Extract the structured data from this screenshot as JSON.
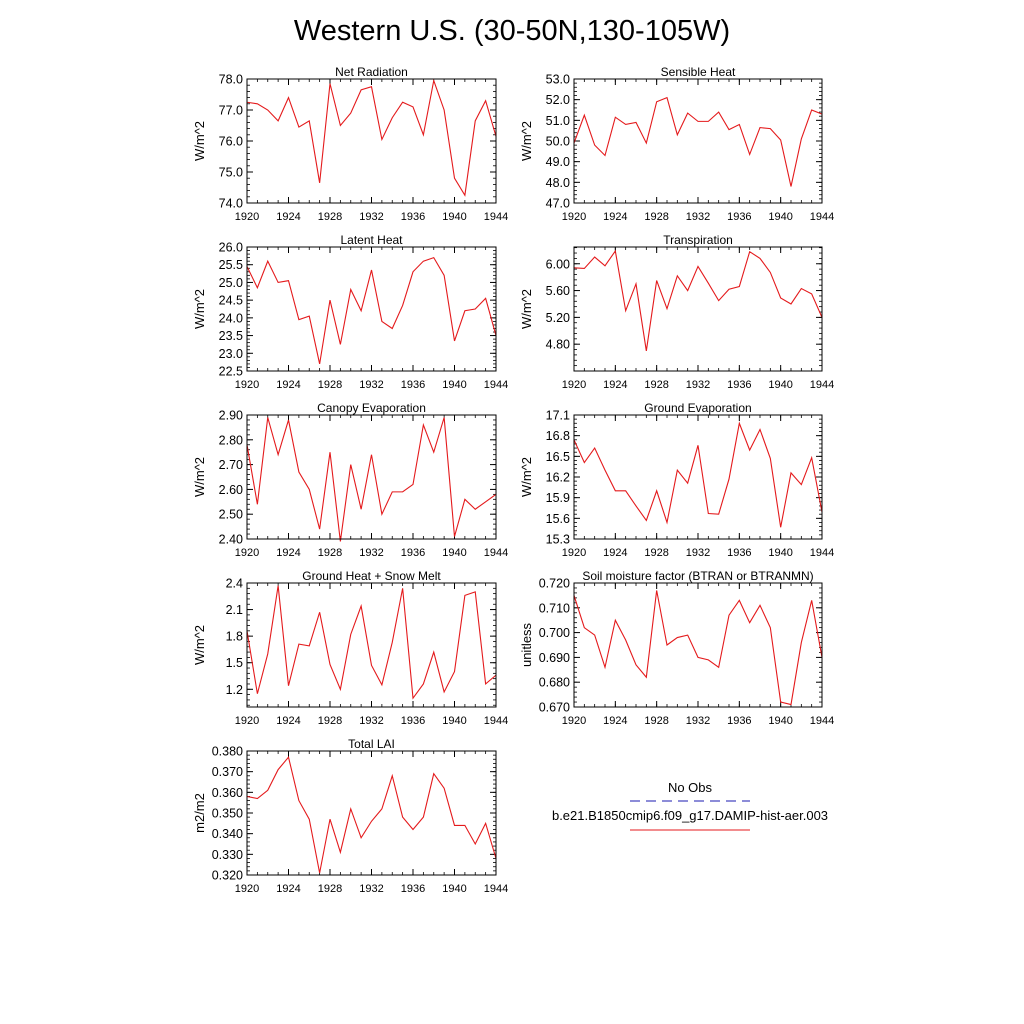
{
  "figure": {
    "title": "Western U.S. (30-50N,130-105W)",
    "legend": {
      "entries": [
        {
          "label": "No Obs",
          "color": "#1a1ab0",
          "style": "dashed"
        },
        {
          "label": "b.e21.B1850cmip6.f09_g17.DAMIP-hist-aer.003",
          "color": "#e41a1c",
          "style": "solid"
        }
      ],
      "placement": "bottom-right"
    },
    "line_color": "#e41a1c"
  },
  "chart_data": [
    {
      "type": "line",
      "title": "Net Radiation",
      "ylabel": "W/m^2",
      "xlim": [
        1920,
        1944
      ],
      "ylim": [
        74.0,
        78.0
      ],
      "xticks": [
        "1920",
        "1924",
        "1928",
        "1932",
        "1936",
        "1940",
        "1944"
      ],
      "yticks": [
        "74.0",
        "75.0",
        "76.0",
        "77.0",
        "78.0"
      ],
      "x": [
        1920,
        1921,
        1922,
        1923,
        1924,
        1925,
        1926,
        1927,
        1928,
        1929,
        1930,
        1931,
        1932,
        1933,
        1934,
        1935,
        1936,
        1937,
        1938,
        1939,
        1940,
        1941,
        1942,
        1943,
        1944
      ],
      "y": [
        77.25,
        77.2,
        77.0,
        76.65,
        77.4,
        76.45,
        76.65,
        74.65,
        77.85,
        76.5,
        76.9,
        77.65,
        77.75,
        76.05,
        76.75,
        77.25,
        77.1,
        76.2,
        77.95,
        77.0,
        74.8,
        74.25,
        76.65,
        77.3,
        76.15
      ]
    },
    {
      "type": "line",
      "title": "Sensible Heat",
      "ylabel": "W/m^2",
      "xlim": [
        1920,
        1944
      ],
      "ylim": [
        47.0,
        53.0
      ],
      "xticks": [
        "1920",
        "1924",
        "1928",
        "1932",
        "1936",
        "1940",
        "1944"
      ],
      "yticks": [
        "47.0",
        "48.0",
        "49.0",
        "50.0",
        "51.0",
        "52.0",
        "53.0"
      ],
      "x": [
        1920,
        1921,
        1922,
        1923,
        1924,
        1925,
        1926,
        1927,
        1928,
        1929,
        1930,
        1931,
        1932,
        1933,
        1934,
        1935,
        1936,
        1937,
        1938,
        1939,
        1940,
        1941,
        1942,
        1943,
        1944
      ],
      "y": [
        49.9,
        51.25,
        49.8,
        49.3,
        51.15,
        50.8,
        50.9,
        49.9,
        51.9,
        52.1,
        50.3,
        51.35,
        50.95,
        50.95,
        51.4,
        50.55,
        50.8,
        49.35,
        50.65,
        50.6,
        50.05,
        47.8,
        50.1,
        51.5,
        51.3
      ]
    },
    {
      "type": "line",
      "title": "Latent Heat",
      "ylabel": "W/m^2",
      "xlim": [
        1920,
        1944
      ],
      "ylim": [
        22.5,
        26.0
      ],
      "xticks": [
        "1920",
        "1924",
        "1928",
        "1932",
        "1936",
        "1940",
        "1944"
      ],
      "yticks": [
        "22.5",
        "23.0",
        "23.5",
        "24.0",
        "24.5",
        "25.0",
        "25.5",
        "26.0"
      ],
      "x": [
        1920,
        1921,
        1922,
        1923,
        1924,
        1925,
        1926,
        1927,
        1928,
        1929,
        1930,
        1931,
        1932,
        1933,
        1934,
        1935,
        1936,
        1937,
        1938,
        1939,
        1940,
        1941,
        1942,
        1943,
        1944
      ],
      "y": [
        25.45,
        24.85,
        25.6,
        25.0,
        25.05,
        23.95,
        24.05,
        22.7,
        24.5,
        23.25,
        24.8,
        24.2,
        25.35,
        23.9,
        23.7,
        24.35,
        25.3,
        25.6,
        25.7,
        25.2,
        23.35,
        24.2,
        24.25,
        24.55,
        23.5
      ]
    },
    {
      "type": "line",
      "title": "Transpiration",
      "ylabel": "W/m^2",
      "xlim": [
        1920,
        1944
      ],
      "ylim": [
        4.4,
        6.25
      ],
      "xticks": [
        "1920",
        "1924",
        "1928",
        "1932",
        "1936",
        "1940",
        "1944"
      ],
      "yticks": [
        "4.80",
        "5.20",
        "5.60",
        "6.00"
      ],
      "x": [
        1920,
        1921,
        1922,
        1923,
        1924,
        1925,
        1926,
        1927,
        1928,
        1929,
        1930,
        1931,
        1932,
        1933,
        1934,
        1935,
        1936,
        1937,
        1938,
        1939,
        1940,
        1941,
        1942,
        1943,
        1944
      ],
      "y": [
        5.94,
        5.93,
        6.1,
        5.97,
        6.19,
        5.3,
        5.7,
        4.7,
        5.75,
        5.33,
        5.82,
        5.6,
        5.96,
        5.71,
        5.45,
        5.62,
        5.66,
        6.18,
        6.08,
        5.87,
        5.49,
        5.4,
        5.63,
        5.55,
        5.2
      ]
    },
    {
      "type": "line",
      "title": "Canopy Evaporation",
      "ylabel": "W/m^2",
      "xlim": [
        1920,
        1944
      ],
      "ylim": [
        2.4,
        2.9
      ],
      "xticks": [
        "1920",
        "1924",
        "1928",
        "1932",
        "1936",
        "1940",
        "1944"
      ],
      "yticks": [
        "2.40",
        "2.50",
        "2.60",
        "2.70",
        "2.80",
        "2.90"
      ],
      "x": [
        1920,
        1921,
        1922,
        1923,
        1924,
        1925,
        1926,
        1927,
        1928,
        1929,
        1930,
        1931,
        1932,
        1933,
        1934,
        1935,
        1936,
        1937,
        1938,
        1939,
        1940,
        1941,
        1942,
        1943,
        1944
      ],
      "y": [
        2.78,
        2.54,
        2.89,
        2.74,
        2.88,
        2.67,
        2.6,
        2.44,
        2.75,
        2.39,
        2.7,
        2.52,
        2.74,
        2.5,
        2.59,
        2.59,
        2.62,
        2.86,
        2.75,
        2.89,
        2.41,
        2.56,
        2.52,
        2.55,
        2.58
      ]
    },
    {
      "type": "line",
      "title": "Ground Evaporation",
      "ylabel": "W/m^2",
      "xlim": [
        1920,
        1944
      ],
      "ylim": [
        15.3,
        17.1
      ],
      "xticks": [
        "1920",
        "1924",
        "1928",
        "1932",
        "1936",
        "1940",
        "1944"
      ],
      "yticks": [
        "15.3",
        "15.6",
        "15.9",
        "16.2",
        "16.5",
        "16.8",
        "17.1"
      ],
      "x": [
        1920,
        1921,
        1922,
        1923,
        1924,
        1925,
        1926,
        1927,
        1928,
        1929,
        1930,
        1931,
        1932,
        1933,
        1934,
        1935,
        1936,
        1937,
        1938,
        1939,
        1940,
        1941,
        1942,
        1943,
        1944
      ],
      "y": [
        16.74,
        16.41,
        16.62,
        16.3,
        16.0,
        16.0,
        15.78,
        15.57,
        16.0,
        15.54,
        16.3,
        16.11,
        16.66,
        15.67,
        15.66,
        16.17,
        16.98,
        16.59,
        16.89,
        16.47,
        15.47,
        16.26,
        16.09,
        16.48,
        15.69
      ]
    },
    {
      "type": "line",
      "title": "Ground Heat + Snow Melt",
      "ylabel": "W/m^2",
      "xlim": [
        1920,
        1944
      ],
      "ylim": [
        1.0,
        2.4
      ],
      "xticks": [
        "1920",
        "1924",
        "1928",
        "1932",
        "1936",
        "1940",
        "1944"
      ],
      "yticks": [
        "1.2",
        "1.5",
        "1.8",
        "2.1",
        "2.4"
      ],
      "x": [
        1920,
        1921,
        1922,
        1923,
        1924,
        1925,
        1926,
        1927,
        1928,
        1929,
        1930,
        1931,
        1932,
        1933,
        1934,
        1935,
        1936,
        1937,
        1938,
        1939,
        1940,
        1941,
        1942,
        1943,
        1944
      ],
      "y": [
        1.86,
        1.15,
        1.6,
        2.37,
        1.24,
        1.71,
        1.69,
        2.07,
        1.48,
        1.2,
        1.82,
        2.14,
        1.47,
        1.25,
        1.73,
        2.34,
        1.1,
        1.26,
        1.62,
        1.17,
        1.4,
        2.26,
        2.3,
        1.26,
        1.36
      ]
    },
    {
      "type": "line",
      "title": "Soil moisture factor (BTRAN or BTRANMN)",
      "ylabel": "unitless",
      "xlim": [
        1920,
        1944
      ],
      "ylim": [
        0.67,
        0.72
      ],
      "xticks": [
        "1920",
        "1924",
        "1928",
        "1932",
        "1936",
        "1940",
        "1944"
      ],
      "yticks": [
        "0.670",
        "0.680",
        "0.690",
        "0.700",
        "0.710",
        "0.720"
      ],
      "x": [
        1920,
        1921,
        1922,
        1923,
        1924,
        1925,
        1926,
        1927,
        1928,
        1929,
        1930,
        1931,
        1932,
        1933,
        1934,
        1935,
        1936,
        1937,
        1938,
        1939,
        1940,
        1941,
        1942,
        1943,
        1944
      ],
      "y": [
        0.715,
        0.702,
        0.699,
        0.686,
        0.705,
        0.697,
        0.687,
        0.682,
        0.717,
        0.695,
        0.698,
        0.699,
        0.69,
        0.689,
        0.686,
        0.707,
        0.713,
        0.704,
        0.711,
        0.702,
        0.672,
        0.671,
        0.696,
        0.713,
        0.69
      ]
    },
    {
      "type": "line",
      "title": "Total LAI",
      "ylabel": "m2/m2",
      "xlim": [
        1920,
        1944
      ],
      "ylim": [
        0.32,
        0.38
      ],
      "xticks": [
        "1920",
        "1924",
        "1928",
        "1932",
        "1936",
        "1940",
        "1944"
      ],
      "yticks": [
        "0.320",
        "0.330",
        "0.340",
        "0.350",
        "0.360",
        "0.370",
        "0.380"
      ],
      "x": [
        1920,
        1921,
        1922,
        1923,
        1924,
        1925,
        1926,
        1927,
        1928,
        1929,
        1930,
        1931,
        1932,
        1933,
        1934,
        1935,
        1936,
        1937,
        1938,
        1939,
        1940,
        1941,
        1942,
        1943,
        1944
      ],
      "y": [
        0.358,
        0.357,
        0.361,
        0.371,
        0.377,
        0.356,
        0.347,
        0.321,
        0.347,
        0.331,
        0.352,
        0.338,
        0.346,
        0.352,
        0.368,
        0.348,
        0.342,
        0.348,
        0.369,
        0.362,
        0.344,
        0.344,
        0.335,
        0.345,
        0.328
      ]
    }
  ]
}
